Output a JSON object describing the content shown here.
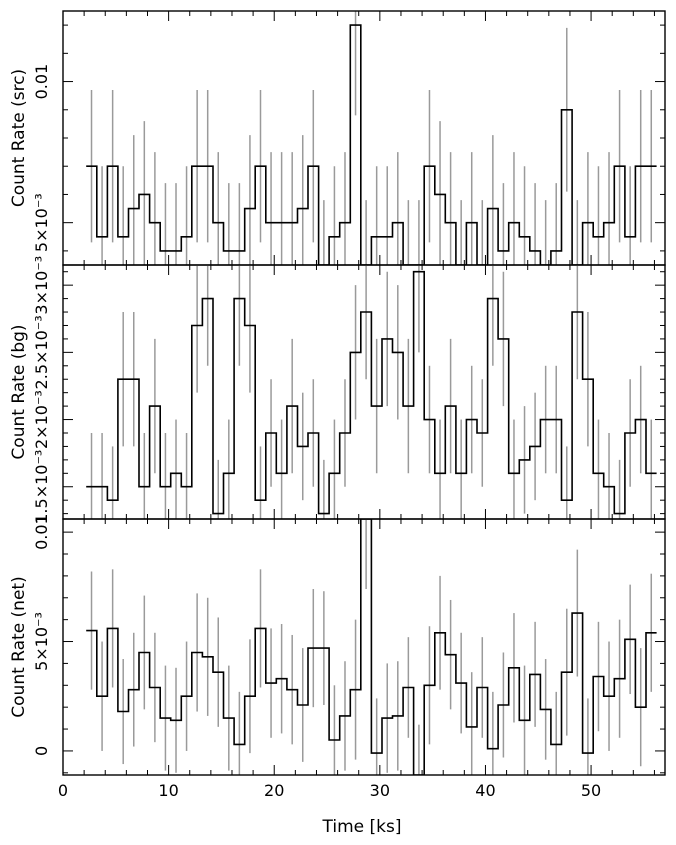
{
  "chart_data": {
    "type": "line",
    "shared_x": {
      "label": "Time [ks]",
      "range": [
        0,
        57
      ],
      "ticks": [
        0,
        10,
        20,
        30,
        40,
        50
      ],
      "tick_labels": [
        "0",
        "10",
        "20",
        "30",
        "40",
        "50"
      ]
    },
    "bin_width_ks": 1.0,
    "panels": [
      {
        "ylabel": "Count Rate (src)",
        "ylim": [
          0.0035,
          0.0125
        ],
        "ticks": [
          0.005,
          0.01
        ],
        "tick_labels": [
          "5×10⁻³",
          "0.01"
        ],
        "minor_ticks": [
          0.004,
          0.006,
          0.007,
          0.008,
          0.009,
          0.011,
          0.012
        ],
        "x": [
          2.7,
          3.7,
          4.7,
          5.7,
          6.7,
          7.7,
          8.7,
          9.7,
          10.7,
          11.7,
          12.7,
          13.7,
          14.7,
          15.7,
          16.7,
          17.7,
          18.7,
          19.7,
          20.7,
          21.7,
          22.7,
          23.7,
          24.7,
          25.7,
          26.7,
          27.7,
          28.7,
          29.7,
          30.7,
          31.7,
          32.7,
          33.7,
          34.7,
          35.7,
          36.7,
          37.7,
          38.7,
          39.7,
          40.7,
          41.7,
          42.7,
          43.7,
          44.7,
          45.7,
          46.7,
          47.7,
          48.7,
          49.7,
          50.7,
          51.7,
          52.7,
          53.7,
          54.7,
          55.7
        ],
        "y": [
          0.007,
          0.0045,
          0.007,
          0.0045,
          0.0055,
          0.006,
          0.005,
          0.004,
          0.004,
          0.0045,
          0.007,
          0.007,
          0.005,
          0.004,
          0.004,
          0.0055,
          0.007,
          0.005,
          0.005,
          0.005,
          0.0055,
          0.007,
          0.0035,
          0.0045,
          0.005,
          0.012,
          0.0035,
          0.0045,
          0.0045,
          0.005,
          0.0035,
          0.0035,
          0.007,
          0.006,
          0.005,
          0.0035,
          0.005,
          0.0035,
          0.0055,
          0.004,
          0.005,
          0.0045,
          0.004,
          0.0035,
          0.004,
          0.009,
          0.0035,
          0.005,
          0.0045,
          0.005,
          0.007,
          0.0045,
          0.007,
          0.007
        ],
        "err": [
          0.0027,
          0.0025,
          0.0027,
          0.0025,
          0.0026,
          0.0026,
          0.0025,
          0.0024,
          0.0024,
          0.0025,
          0.0027,
          0.0027,
          0.0025,
          0.0024,
          0.0024,
          0.0026,
          0.0027,
          0.0025,
          0.0025,
          0.0025,
          0.0026,
          0.0027,
          0.0023,
          0.0025,
          0.0025,
          0.0032,
          0.0023,
          0.0025,
          0.0025,
          0.0025,
          0.0023,
          0.0023,
          0.0027,
          0.0026,
          0.0025,
          0.0023,
          0.0025,
          0.0023,
          0.0026,
          0.0024,
          0.0025,
          0.0025,
          0.0024,
          0.0023,
          0.0024,
          0.0029,
          0.0023,
          0.0025,
          0.0025,
          0.0025,
          0.0027,
          0.0025,
          0.0027,
          0.0027
        ]
      },
      {
        "ylabel": "Count Rate (bg)",
        "ylim": [
          0.00126,
          0.00315
        ],
        "ticks": [
          0.0015,
          0.002,
          0.0025,
          0.003
        ],
        "tick_labels": [
          "1.5×10⁻³",
          "2×10⁻³",
          "2.5×10⁻³",
          "3×10⁻³"
        ],
        "minor_ticks": [
          0.0013,
          0.0014,
          0.0016,
          0.0017,
          0.0018,
          0.0019,
          0.0021,
          0.0022,
          0.0023,
          0.0024,
          0.0026,
          0.0027,
          0.0028,
          0.0029,
          0.0031
        ],
        "x": [
          2.7,
          3.7,
          4.7,
          5.7,
          6.7,
          7.7,
          8.7,
          9.7,
          10.7,
          11.7,
          12.7,
          13.7,
          14.7,
          15.7,
          16.7,
          17.7,
          18.7,
          19.7,
          20.7,
          21.7,
          22.7,
          23.7,
          24.7,
          25.7,
          26.7,
          27.7,
          28.7,
          29.7,
          30.7,
          31.7,
          32.7,
          33.7,
          34.7,
          35.7,
          36.7,
          37.7,
          38.7,
          39.7,
          40.7,
          41.7,
          42.7,
          43.7,
          44.7,
          45.7,
          46.7,
          47.7,
          48.7,
          49.7,
          50.7,
          51.7,
          52.7,
          53.7,
          54.7,
          55.7
        ],
        "y": [
          0.0015,
          0.0015,
          0.0014,
          0.0023,
          0.0023,
          0.0015,
          0.0021,
          0.0015,
          0.0016,
          0.0015,
          0.0027,
          0.0029,
          0.0013,
          0.0016,
          0.0029,
          0.0027,
          0.0014,
          0.0019,
          0.0016,
          0.0021,
          0.0018,
          0.0019,
          0.0013,
          0.0016,
          0.0019,
          0.0025,
          0.0028,
          0.0021,
          0.0026,
          0.0025,
          0.0021,
          0.0031,
          0.002,
          0.0016,
          0.0021,
          0.0016,
          0.002,
          0.0019,
          0.0029,
          0.0026,
          0.0016,
          0.0017,
          0.0018,
          0.002,
          0.002,
          0.0014,
          0.0028,
          0.0023,
          0.0016,
          0.0015,
          0.0013,
          0.0019,
          0.002,
          0.0016
        ],
        "err": [
          0.0004,
          0.0004,
          0.0004,
          0.0005,
          0.0005,
          0.0004,
          0.0005,
          0.0004,
          0.0004,
          0.0004,
          0.0005,
          0.0005,
          0.0004,
          0.0004,
          0.0005,
          0.0005,
          0.0004,
          0.0004,
          0.0004,
          0.0005,
          0.0004,
          0.0004,
          0.0004,
          0.0004,
          0.0004,
          0.0005,
          0.0005,
          0.0005,
          0.0005,
          0.0005,
          0.0005,
          0.0006,
          0.0004,
          0.0004,
          0.0005,
          0.0004,
          0.0004,
          0.0004,
          0.0005,
          0.0005,
          0.0004,
          0.0004,
          0.0004,
          0.0004,
          0.0004,
          0.0004,
          0.0005,
          0.0005,
          0.0004,
          0.0004,
          0.0004,
          0.0004,
          0.0004,
          0.0004
        ]
      },
      {
        "ylabel": "Count Rate (net)",
        "ylim": [
          -0.0011,
          0.0106
        ],
        "ticks": [
          0,
          0.005,
          0.01
        ],
        "tick_labels": [
          "0",
          "5×10⁻³",
          "0.01"
        ],
        "minor_ticks": [
          -0.001,
          0.001,
          0.002,
          0.003,
          0.004,
          0.006,
          0.007,
          0.008,
          0.009
        ],
        "x": [
          2.7,
          3.7,
          4.7,
          5.7,
          6.7,
          7.7,
          8.7,
          9.7,
          10.7,
          11.7,
          12.7,
          13.7,
          14.7,
          15.7,
          16.7,
          17.7,
          18.7,
          19.7,
          20.7,
          21.7,
          22.7,
          23.7,
          24.7,
          25.7,
          26.7,
          27.7,
          28.7,
          29.7,
          30.7,
          31.7,
          32.7,
          33.7,
          34.7,
          35.7,
          36.7,
          37.7,
          38.7,
          39.7,
          40.7,
          41.7,
          42.7,
          43.7,
          44.7,
          45.7,
          46.7,
          47.7,
          48.7,
          49.7,
          50.7,
          51.7,
          52.7,
          53.7,
          54.7,
          55.7
        ],
        "y": [
          0.0055,
          0.0025,
          0.0056,
          0.0018,
          0.0028,
          0.0045,
          0.0029,
          0.0015,
          0.0014,
          0.0025,
          0.0045,
          0.0043,
          0.0036,
          0.0015,
          0.0003,
          0.0025,
          0.0056,
          0.0031,
          0.0033,
          0.0028,
          0.0021,
          0.0047,
          0.0047,
          0.0005,
          0.0016,
          0.0028,
          0.0106,
          -0.0001,
          0.0015,
          0.0016,
          0.0029,
          -0.0011,
          0.003,
          0.0054,
          0.0044,
          0.0031,
          0.0011,
          0.0029,
          0.0001,
          0.0021,
          0.0038,
          0.0014,
          0.0035,
          0.0019,
          0.0003,
          0.0036,
          0.0063,
          -0.0001,
          0.0034,
          0.0025,
          0.0033,
          0.0051,
          0.002,
          0.0054
        ],
        "err": [
          0.0027,
          0.0025,
          0.0027,
          0.0024,
          0.0026,
          0.0026,
          0.0025,
          0.0024,
          0.0024,
          0.0025,
          0.0027,
          0.0027,
          0.0025,
          0.0024,
          0.0024,
          0.0026,
          0.0027,
          0.0025,
          0.0025,
          0.0025,
          0.0026,
          0.0027,
          0.0026,
          0.0025,
          0.0025,
          0.0032,
          0.0032,
          0.0025,
          0.0025,
          0.0025,
          0.0023,
          0.0023,
          0.0027,
          0.0026,
          0.0025,
          0.0023,
          0.0025,
          0.0023,
          0.0026,
          0.0024,
          0.0025,
          0.0025,
          0.0024,
          0.0023,
          0.0024,
          0.0029,
          0.0029,
          0.0025,
          0.0025,
          0.0025,
          0.0027,
          0.0025,
          0.0027,
          0.0027
        ]
      }
    ]
  }
}
